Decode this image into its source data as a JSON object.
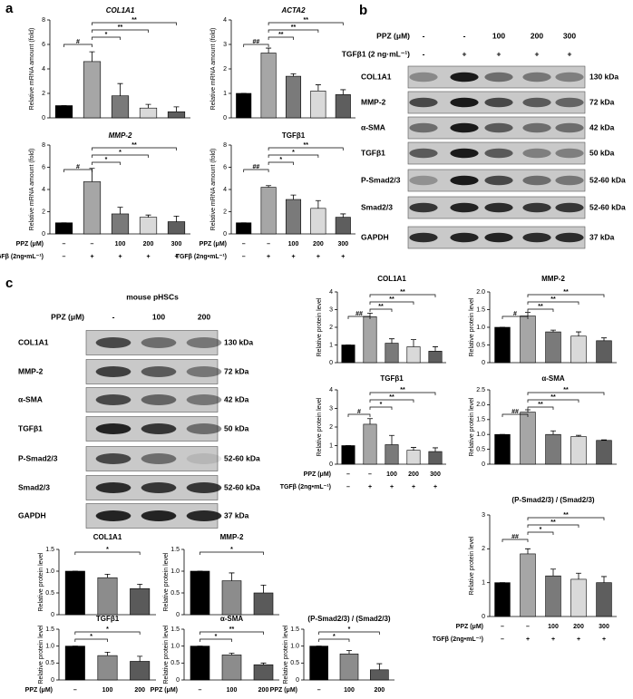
{
  "panels": [
    "a",
    "b",
    "c"
  ],
  "blots": [
    {
      "header": [
        {
          "label": "PPZ (μM)",
          "values": [
            "-",
            "-",
            "100",
            "200",
            "300"
          ]
        },
        {
          "label": "TGFβ1 (2 ng·mL⁻¹)",
          "values": [
            "-",
            "+",
            "+",
            "+",
            "+"
          ]
        }
      ],
      "rows": [
        {
          "label": "COL1A1",
          "size": "130 kDa"
        },
        {
          "label": "MMP-2",
          "size": "72 kDa"
        },
        {
          "label": "α-SMA",
          "size": "42 kDa"
        },
        {
          "label": "TGFβ1",
          "size": "50 kDa"
        },
        {
          "label": "P-Smad2/3",
          "size": "52-60 kDa"
        },
        {
          "label": "Smad2/3",
          "size": "52-60 kDa"
        },
        {
          "label": "GAPDH",
          "size": "37 kDa"
        }
      ]
    },
    {
      "title": "mouse pHSCs",
      "header": [
        {
          "label": "PPZ (μM)",
          "values": [
            "-",
            "100",
            "200"
          ]
        }
      ],
      "rows": [
        {
          "label": "COL1A1",
          "size": "130 kDa"
        },
        {
          "label": "MMP-2",
          "size": "72 kDa"
        },
        {
          "label": "α-SMA",
          "size": "42 kDa"
        },
        {
          "label": "TGFβ1",
          "size": "50 kDa"
        },
        {
          "label": "P-Smad2/3",
          "size": "52-60 kDa"
        },
        {
          "label": "Smad2/3",
          "size": "52-60 kDa"
        },
        {
          "label": "GAPDH",
          "size": "37 kDa"
        }
      ]
    }
  ],
  "chart_data": [
    {
      "type": "bar",
      "title": "COL1A1",
      "ylabel": "Relative mRNA amount (fold)",
      "categories": [
        null,
        null,
        null,
        null,
        null
      ],
      "values": [
        1,
        4.6,
        1.8,
        0.8,
        0.5
      ],
      "errors": [
        0,
        0.8,
        1.0,
        0.3,
        0.4
      ],
      "colors": [
        "#000000",
        "#a6a6a6",
        "#7a7a7a",
        "#d9d9d9",
        "#5e5e5e"
      ],
      "ylim": [
        0,
        8
      ],
      "yticks": [
        0,
        2,
        4,
        6,
        8
      ],
      "comparisons": [
        {
          "label": "#",
          "bars": [
            0,
            1
          ]
        },
        {
          "label": "*",
          "bars": [
            1,
            2
          ]
        },
        {
          "label": "**",
          "bars": [
            1,
            3
          ]
        },
        {
          "label": "**",
          "bars": [
            1,
            4
          ]
        }
      ]
    },
    {
      "type": "bar",
      "title": "ACTA2",
      "ylabel": "Relative mRNA amount (fold)",
      "categories": [
        null,
        null,
        null,
        null,
        null
      ],
      "values": [
        1,
        2.65,
        1.7,
        1.1,
        0.95
      ],
      "errors": [
        0,
        0.2,
        0.1,
        0.25,
        0.2
      ],
      "colors": [
        "#000000",
        "#a6a6a6",
        "#7a7a7a",
        "#d9d9d9",
        "#5e5e5e"
      ],
      "ylim": [
        0,
        4
      ],
      "yticks": [
        0,
        1,
        2,
        3,
        4
      ],
      "comparisons": [
        {
          "label": "##",
          "bars": [
            0,
            1
          ]
        },
        {
          "label": "**",
          "bars": [
            1,
            2
          ]
        },
        {
          "label": "**",
          "bars": [
            1,
            3
          ]
        },
        {
          "label": "**",
          "bars": [
            1,
            4
          ]
        }
      ]
    },
    {
      "type": "bar",
      "title": "MMP-2",
      "ylabel": "Relative mRNA amount (fold)",
      "categories": [
        null,
        null,
        null,
        null,
        null
      ],
      "values": [
        1,
        4.7,
        1.8,
        1.5,
        1.1
      ],
      "errors": [
        0,
        1.2,
        0.6,
        0.2,
        0.5
      ],
      "colors": [
        "#000000",
        "#a6a6a6",
        "#7a7a7a",
        "#d9d9d9",
        "#5e5e5e"
      ],
      "ylim": [
        0,
        8
      ],
      "yticks": [
        0,
        2,
        4,
        6,
        8
      ],
      "comparisons": [
        {
          "label": "#",
          "bars": [
            0,
            1
          ]
        },
        {
          "label": "*",
          "bars": [
            1,
            2
          ]
        },
        {
          "label": "*",
          "bars": [
            1,
            3
          ]
        },
        {
          "label": "**",
          "bars": [
            1,
            4
          ]
        }
      ],
      "treatments": [
        {
          "label": "PPZ (μM)",
          "values": [
            "–",
            "–",
            "100",
            "200",
            "300"
          ]
        },
        {
          "label": "TGFβ (2ng•mL⁻¹)",
          "values": [
            "–",
            "+",
            "+",
            "+",
            "+"
          ]
        }
      ]
    },
    {
      "type": "bar",
      "title": "TGFβ1",
      "ylabel": "Relative mRNA amount (fold)",
      "categories": [
        null,
        null,
        null,
        null,
        null
      ],
      "values": [
        1,
        4.2,
        3.1,
        2.3,
        1.5
      ],
      "errors": [
        0,
        0.15,
        0.4,
        0.7,
        0.3
      ],
      "colors": [
        "#000000",
        "#a6a6a6",
        "#7a7a7a",
        "#d9d9d9",
        "#5e5e5e"
      ],
      "ylim": [
        0,
        8
      ],
      "yticks": [
        0,
        2,
        4,
        6,
        8
      ],
      "comparisons": [
        {
          "label": "##",
          "bars": [
            0,
            1
          ]
        },
        {
          "label": "*",
          "bars": [
            1,
            2
          ]
        },
        {
          "label": "*",
          "bars": [
            1,
            3
          ]
        },
        {
          "label": "**",
          "bars": [
            1,
            4
          ]
        }
      ],
      "treatments": [
        {
          "label": "PPZ (μM)",
          "values": [
            "–",
            "–",
            "100",
            "200",
            "300"
          ]
        },
        {
          "label": "TGFβ (2ng•mL⁻¹)",
          "values": [
            "–",
            "+",
            "+",
            "+",
            "+"
          ]
        }
      ]
    },
    {
      "type": "bar",
      "title": "COL1A1",
      "ylabel": "Relative protein level",
      "categories": [
        null,
        null,
        null,
        null,
        null
      ],
      "values": [
        1,
        2.6,
        1.1,
        0.9,
        0.65
      ],
      "errors": [
        0,
        0.2,
        0.25,
        0.4,
        0.25
      ],
      "colors": [
        "#000000",
        "#a6a6a6",
        "#7a7a7a",
        "#d9d9d9",
        "#5e5e5e"
      ],
      "ylim": [
        0,
        4
      ],
      "yticks": [
        0,
        1,
        2,
        3,
        4
      ],
      "comparisons": [
        {
          "label": "##",
          "bars": [
            0,
            1
          ]
        },
        {
          "label": "**",
          "bars": [
            1,
            2
          ]
        },
        {
          "label": "**",
          "bars": [
            1,
            3
          ]
        },
        {
          "label": "**",
          "bars": [
            1,
            4
          ]
        }
      ]
    },
    {
      "type": "bar",
      "title": "MMP-2",
      "ylabel": "Relative protein level",
      "categories": [
        null,
        null,
        null,
        null,
        null
      ],
      "values": [
        1,
        1.32,
        0.87,
        0.75,
        0.62
      ],
      "errors": [
        0,
        0.1,
        0.05,
        0.12,
        0.08
      ],
      "colors": [
        "#000000",
        "#a6a6a6",
        "#7a7a7a",
        "#d9d9d9",
        "#5e5e5e"
      ],
      "ylim": [
        0,
        2
      ],
      "yticks": [
        0,
        0.5,
        {
          "value": 1,
          "label": "1.0"
        },
        1.5,
        {
          "value": 2,
          "label": "2.0"
        }
      ],
      "comparisons": [
        {
          "label": "#",
          "bars": [
            0,
            1
          ]
        },
        {
          "label": "**",
          "bars": [
            1,
            2
          ]
        },
        {
          "label": "**",
          "bars": [
            1,
            3
          ]
        },
        {
          "label": "**",
          "bars": [
            1,
            4
          ]
        }
      ]
    },
    {
      "type": "bar",
      "title": "TGFβ1",
      "ylabel": "Relative protein level",
      "categories": [
        null,
        null,
        null,
        null,
        null
      ],
      "values": [
        1,
        2.15,
        1.05,
        0.75,
        0.68
      ],
      "errors": [
        0,
        0.3,
        0.5,
        0.15,
        0.2
      ],
      "colors": [
        "#000000",
        "#a6a6a6",
        "#7a7a7a",
        "#d9d9d9",
        "#5e5e5e"
      ],
      "ylim": [
        0,
        4
      ],
      "yticks": [
        0,
        1,
        2,
        3,
        4
      ],
      "comparisons": [
        {
          "label": "#",
          "bars": [
            0,
            1
          ]
        },
        {
          "label": "*",
          "bars": [
            1,
            2
          ]
        },
        {
          "label": "**",
          "bars": [
            1,
            3
          ]
        },
        {
          "label": "**",
          "bars": [
            1,
            4
          ]
        }
      ],
      "treatments": [
        {
          "label": "PPZ (μM)",
          "values": [
            "–",
            "–",
            "100",
            "200",
            "300"
          ]
        },
        {
          "label": "TGFβ (2ng•mL⁻¹)",
          "values": [
            "–",
            "+",
            "+",
            "+",
            "+"
          ]
        }
      ]
    },
    {
      "type": "bar",
      "title": "α-SMA",
      "ylabel": "Relative protein level",
      "categories": [
        null,
        null,
        null,
        null,
        null
      ],
      "values": [
        1,
        1.75,
        1.0,
        0.93,
        0.8
      ],
      "errors": [
        0,
        0.08,
        0.12,
        0.04,
        0.02
      ],
      "colors": [
        "#000000",
        "#a6a6a6",
        "#7a7a7a",
        "#d9d9d9",
        "#5e5e5e"
      ],
      "ylim": [
        0,
        2.5
      ],
      "yticks": [
        0,
        0.5,
        {
          "value": 1,
          "label": "1.0"
        },
        1.5,
        {
          "value": 2,
          "label": "2.0"
        },
        2.5
      ],
      "comparisons": [
        {
          "label": "##",
          "bars": [
            0,
            1
          ]
        },
        {
          "label": "**",
          "bars": [
            1,
            2
          ]
        },
        {
          "label": "**",
          "bars": [
            1,
            3
          ]
        },
        {
          "label": "**",
          "bars": [
            1,
            4
          ]
        }
      ]
    },
    {
      "type": "bar",
      "title": "(P-Smad2/3) / (Smad2/3)",
      "ylabel": "Relative protein level",
      "categories": [
        null,
        null,
        null,
        null,
        null
      ],
      "values": [
        1,
        1.85,
        1.2,
        1.1,
        1.0
      ],
      "errors": [
        0,
        0.15,
        0.2,
        0.18,
        0.18
      ],
      "colors": [
        "#000000",
        "#a6a6a6",
        "#7a7a7a",
        "#d9d9d9",
        "#5e5e5e"
      ],
      "ylim": [
        0,
        3
      ],
      "yticks": [
        0,
        1,
        2,
        3
      ],
      "comparisons": [
        {
          "label": "##",
          "bars": [
            0,
            1
          ]
        },
        {
          "label": "*",
          "bars": [
            1,
            2
          ]
        },
        {
          "label": "**",
          "bars": [
            1,
            3
          ]
        },
        {
          "label": "**",
          "bars": [
            1,
            4
          ]
        }
      ],
      "treatments": [
        {
          "label": "PPZ (μM)",
          "values": [
            "–",
            "–",
            "100",
            "200",
            "300"
          ]
        },
        {
          "label": "TGFβ (2ng•mL⁻¹)",
          "values": [
            "–",
            "+",
            "+",
            "+",
            "+"
          ]
        }
      ]
    },
    {
      "type": "bar",
      "title": "COL1A1",
      "ylabel": "Relative protein level",
      "categories": [
        null,
        null,
        null
      ],
      "values": [
        1,
        0.85,
        0.6
      ],
      "errors": [
        0,
        0.08,
        0.1
      ],
      "colors": [
        "#000000",
        "#8c8c8c",
        "#5a5a5a"
      ],
      "ylim": [
        0,
        1.5
      ],
      "yticks": [
        0,
        0.5,
        {
          "value": 1,
          "label": "1.0"
        },
        1.5
      ],
      "comparisons": [
        {
          "label": "*",
          "bars": [
            0,
            2
          ]
        }
      ]
    },
    {
      "type": "bar",
      "title": "MMP-2",
      "ylabel": "Relative protein level",
      "categories": [
        null,
        null,
        null
      ],
      "values": [
        1,
        0.78,
        0.5
      ],
      "errors": [
        0,
        0.18,
        0.18
      ],
      "colors": [
        "#000000",
        "#8c8c8c",
        "#5a5a5a"
      ],
      "ylim": [
        0,
        1.5
      ],
      "yticks": [
        0,
        0.5,
        {
          "value": 1,
          "label": "1.0"
        },
        1.5
      ],
      "comparisons": [
        {
          "label": "*",
          "bars": [
            0,
            2
          ]
        }
      ]
    },
    {
      "type": "bar",
      "title": "TGFβ1",
      "ylabel": "Relative protein level",
      "categories": [
        null,
        null,
        null
      ],
      "values": [
        1,
        0.72,
        0.55
      ],
      "errors": [
        0,
        0.1,
        0.15
      ],
      "colors": [
        "#000000",
        "#8c8c8c",
        "#5a5a5a"
      ],
      "ylim": [
        0,
        1.5
      ],
      "yticks": [
        0,
        0.5,
        {
          "value": 1,
          "label": "1.0"
        },
        1.5
      ],
      "comparisons": [
        {
          "label": "*",
          "bars": [
            0,
            1
          ]
        },
        {
          "label": "*",
          "bars": [
            0,
            2
          ]
        }
      ],
      "treatments": [
        {
          "label": "PPZ (μM)",
          "values": [
            "–",
            "100",
            "200"
          ]
        }
      ]
    },
    {
      "type": "bar",
      "title": "α-SMA",
      "ylabel": "Relative protein level",
      "categories": [
        null,
        null,
        null
      ],
      "values": [
        1,
        0.74,
        0.45
      ],
      "errors": [
        0,
        0.05,
        0.05
      ],
      "colors": [
        "#000000",
        "#8c8c8c",
        "#5a5a5a"
      ],
      "ylim": [
        0,
        1.5
      ],
      "yticks": [
        0,
        0.5,
        {
          "value": 1,
          "label": "1.0"
        },
        1.5
      ],
      "comparisons": [
        {
          "label": "*",
          "bars": [
            0,
            1
          ]
        },
        {
          "label": "**",
          "bars": [
            0,
            2
          ]
        }
      ],
      "treatments": [
        {
          "label": "PPZ (μM)",
          "values": [
            "–",
            "100",
            "200"
          ]
        }
      ]
    },
    {
      "type": "bar",
      "title": "(P-Smad2/3) / (Smad2/3)",
      "ylabel": "Relative protein level",
      "categories": [
        null,
        null,
        null
      ],
      "values": [
        1,
        0.77,
        0.3
      ],
      "errors": [
        0,
        0.1,
        0.18
      ],
      "colors": [
        "#000000",
        "#8c8c8c",
        "#5a5a5a"
      ],
      "ylim": [
        0,
        1.5
      ],
      "yticks": [
        0,
        0.5,
        {
          "value": 1,
          "label": "1.0"
        },
        1.5
      ],
      "comparisons": [
        {
          "label": "*",
          "bars": [
            0,
            1
          ]
        },
        {
          "label": "*",
          "bars": [
            0,
            2
          ]
        }
      ],
      "treatments": [
        {
          "label": "PPZ (μM)",
          "values": [
            "–",
            "100",
            "200"
          ]
        }
      ]
    }
  ]
}
